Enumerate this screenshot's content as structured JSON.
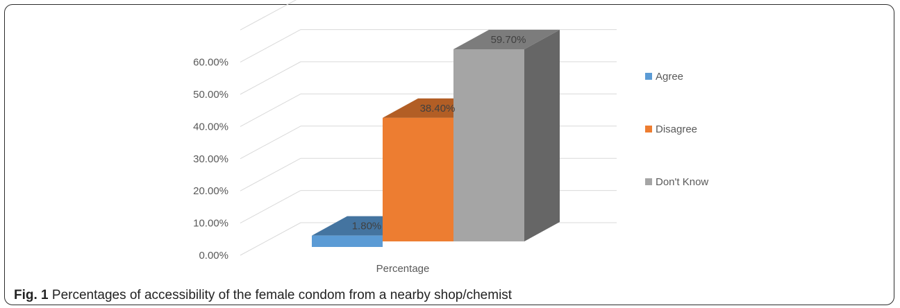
{
  "chart_data": {
    "type": "bar",
    "categories": [
      "Percentage"
    ],
    "series": [
      {
        "name": "Agree",
        "values": [
          1.8
        ],
        "color": "#5B9BD5"
      },
      {
        "name": "Disagree",
        "values": [
          38.4
        ],
        "color": "#ED7D31"
      },
      {
        "name": "Don't Know",
        "values": [
          59.7
        ],
        "color": "#A5A5A5"
      }
    ],
    "data_labels": [
      "1.80%",
      "38.40%",
      "59.70%"
    ],
    "y_ticks": [
      "0.00%",
      "10.00%",
      "20.00%",
      "30.00%",
      "40.00%",
      "50.00%",
      "60.00%"
    ],
    "ylim": [
      0,
      70
    ],
    "y_unit": "percent",
    "title": "",
    "xlabel": "",
    "ylabel": "",
    "three_d": true,
    "grid": true,
    "legend_position": "right"
  },
  "caption": {
    "label": "Fig. 1",
    "text": "Percentages of accessibility of the female condom from a nearby shop/chemist"
  }
}
